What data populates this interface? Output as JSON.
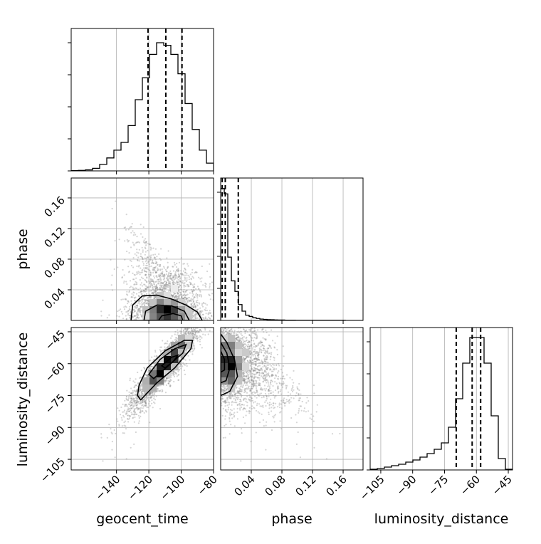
{
  "chart_data": {
    "type": "corner",
    "parameters": [
      "geocent_time",
      "phase",
      "luminosity_distance"
    ],
    "axis_labels": {
      "geocent_time": "geocent_time",
      "phase": "phase",
      "luminosity_distance": "luminosity_distance"
    },
    "ranges": {
      "geocent_time": [
        -168,
        -80
      ],
      "phase": [
        0,
        0.186
      ],
      "luminosity_distance": [
        -110,
        -43
      ]
    },
    "ticks": {
      "geocent_time": [
        -140,
        -120,
        -100,
        -80
      ],
      "phase": [
        0.04,
        0.08,
        0.12,
        0.16
      ],
      "luminosity_distance": [
        -105,
        -90,
        -75,
        -60,
        -45
      ]
    },
    "tick_labels": {
      "geocent_time": [
        "−140",
        "−120",
        "−100",
        "−80"
      ],
      "phase": [
        "0.04",
        "0.08",
        "0.12",
        "0.16"
      ],
      "luminosity_distance": [
        "−105",
        "−90",
        "−75",
        "−60",
        "−45"
      ]
    },
    "quantiles": {
      "geocent_time": [
        -120.5,
        -109.5,
        -99.5
      ],
      "phase": [
        0.002,
        0.006,
        0.023
      ],
      "luminosity_distance": [
        -69.5,
        -62,
        -58
      ]
    },
    "histograms": {
      "geocent_time": {
        "edges": [
          -168,
          -163.6,
          -159.2,
          -154.8,
          -150.4,
          -146,
          -141.6,
          -137.2,
          -132.8,
          -128.4,
          -124,
          -119.6,
          -115.2,
          -110.8,
          -106.4,
          -102,
          -97.6,
          -93.2,
          -88.8,
          -84.4,
          -80
        ],
        "counts": [
          0.002,
          0.004,
          0.008,
          0.02,
          0.05,
          0.1,
          0.16,
          0.22,
          0.35,
          0.55,
          0.72,
          0.9,
          0.99,
          0.97,
          0.9,
          0.75,
          0.52,
          0.32,
          0.16,
          0.06
        ],
        "ylim": [
          0,
          1.1
        ]
      },
      "phase": {
        "edges": [
          0,
          0.0047,
          0.0093,
          0.014,
          0.0186,
          0.0233,
          0.0279,
          0.0326,
          0.0372,
          0.0419,
          0.0465,
          0.0512,
          0.0558,
          0.0605,
          0.0651,
          0.0698,
          0.0744,
          0.0791,
          0.0837,
          0.0884,
          0.093,
          0.0977,
          0.1023,
          0.107,
          0.1116,
          0.1163,
          0.1209,
          0.1256,
          0.1302,
          0.1349,
          0.1395,
          0.1442,
          0.1488,
          0.1535,
          0.1581,
          0.1628,
          0.1674,
          0.1721,
          0.1767,
          0.1814,
          0.186
        ],
        "counts": [
          1.0,
          0.96,
          0.48,
          0.3,
          0.22,
          0.12,
          0.07,
          0.04,
          0.03,
          0.02,
          0.015,
          0.01,
          0.008,
          0.006,
          0.005,
          0.004,
          0.003,
          0.003,
          0.002,
          0.002,
          0.002,
          0.001,
          0.001,
          0.001,
          0.001,
          0.001,
          0.001,
          0.001,
          0.001,
          0.001,
          0.001,
          0.001,
          0.001,
          0.001,
          0.001,
          0.0,
          0.0,
          0.0,
          0.0,
          0.0
        ],
        "ylim": [
          0,
          1.08
        ]
      },
      "luminosity_distance": {
        "edges": [
          -110,
          -106.65,
          -103.3,
          -99.95,
          -96.6,
          -93.25,
          -89.9,
          -86.55,
          -83.2,
          -79.85,
          -76.5,
          -73.15,
          -69.8,
          -66.45,
          -63.1,
          -59.75,
          -56.4,
          -53.05,
          -49.7,
          -46.35,
          -43
        ],
        "counts": [
          0.005,
          0.01,
          0.02,
          0.03,
          0.04,
          0.055,
          0.07,
          0.09,
          0.115,
          0.145,
          0.19,
          0.3,
          0.5,
          0.75,
          0.93,
          0.93,
          0.75,
          0.38,
          0.08,
          0.005
        ],
        "ylim": [
          0,
          1.0
        ]
      }
    },
    "pairs": [
      {
        "x": "geocent_time",
        "y": "phase"
      },
      {
        "x": "geocent_time",
        "y": "luminosity_distance"
      },
      {
        "x": "phase",
        "y": "luminosity_distance"
      }
    ],
    "grid": true,
    "contour_levels": 3
  }
}
